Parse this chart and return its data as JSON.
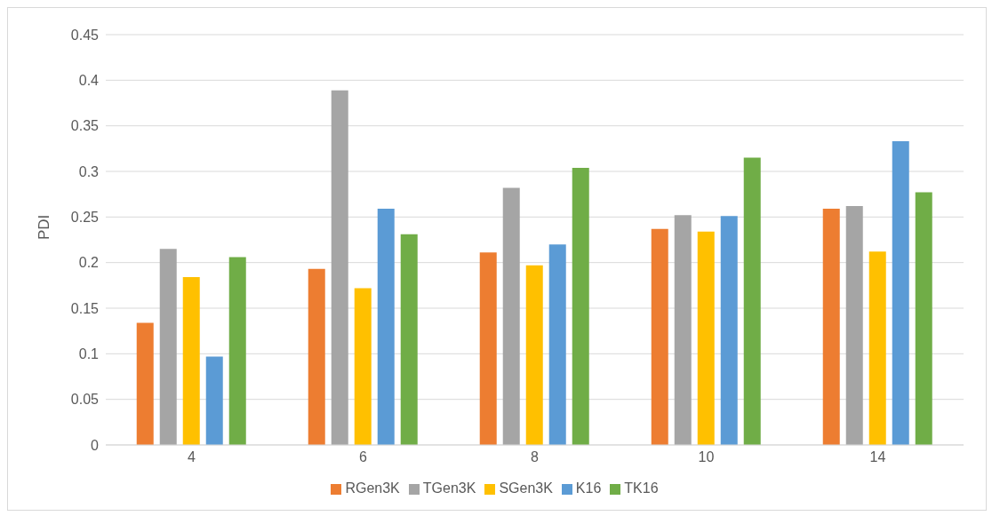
{
  "chart_data": {
    "type": "bar",
    "ylabel": "PDI",
    "categories": [
      "4",
      "6",
      "8",
      "10",
      "14"
    ],
    "series": [
      {
        "name": "RGen3K",
        "color": "#ed7d31",
        "values": [
          0.134,
          0.193,
          0.211,
          0.237,
          0.259
        ]
      },
      {
        "name": "TGen3K",
        "color": "#a5a5a5",
        "values": [
          0.215,
          0.389,
          0.282,
          0.252,
          0.262
        ]
      },
      {
        "name": "SGen3K",
        "color": "#ffc000",
        "values": [
          0.184,
          0.172,
          0.197,
          0.234,
          0.212
        ]
      },
      {
        "name": "K16",
        "color": "#5b9bd5",
        "values": [
          0.097,
          0.259,
          0.22,
          0.251,
          0.333
        ]
      },
      {
        "name": "TK16",
        "color": "#70ad47",
        "values": [
          0.206,
          0.231,
          0.304,
          0.315,
          0.277
        ]
      }
    ],
    "ylim": [
      0,
      0.45
    ],
    "yticks": [
      0,
      0.05,
      0.1,
      0.15,
      0.2,
      0.25,
      0.3,
      0.35,
      0.4,
      0.45
    ],
    "grid": "y",
    "legend": "bottom"
  }
}
